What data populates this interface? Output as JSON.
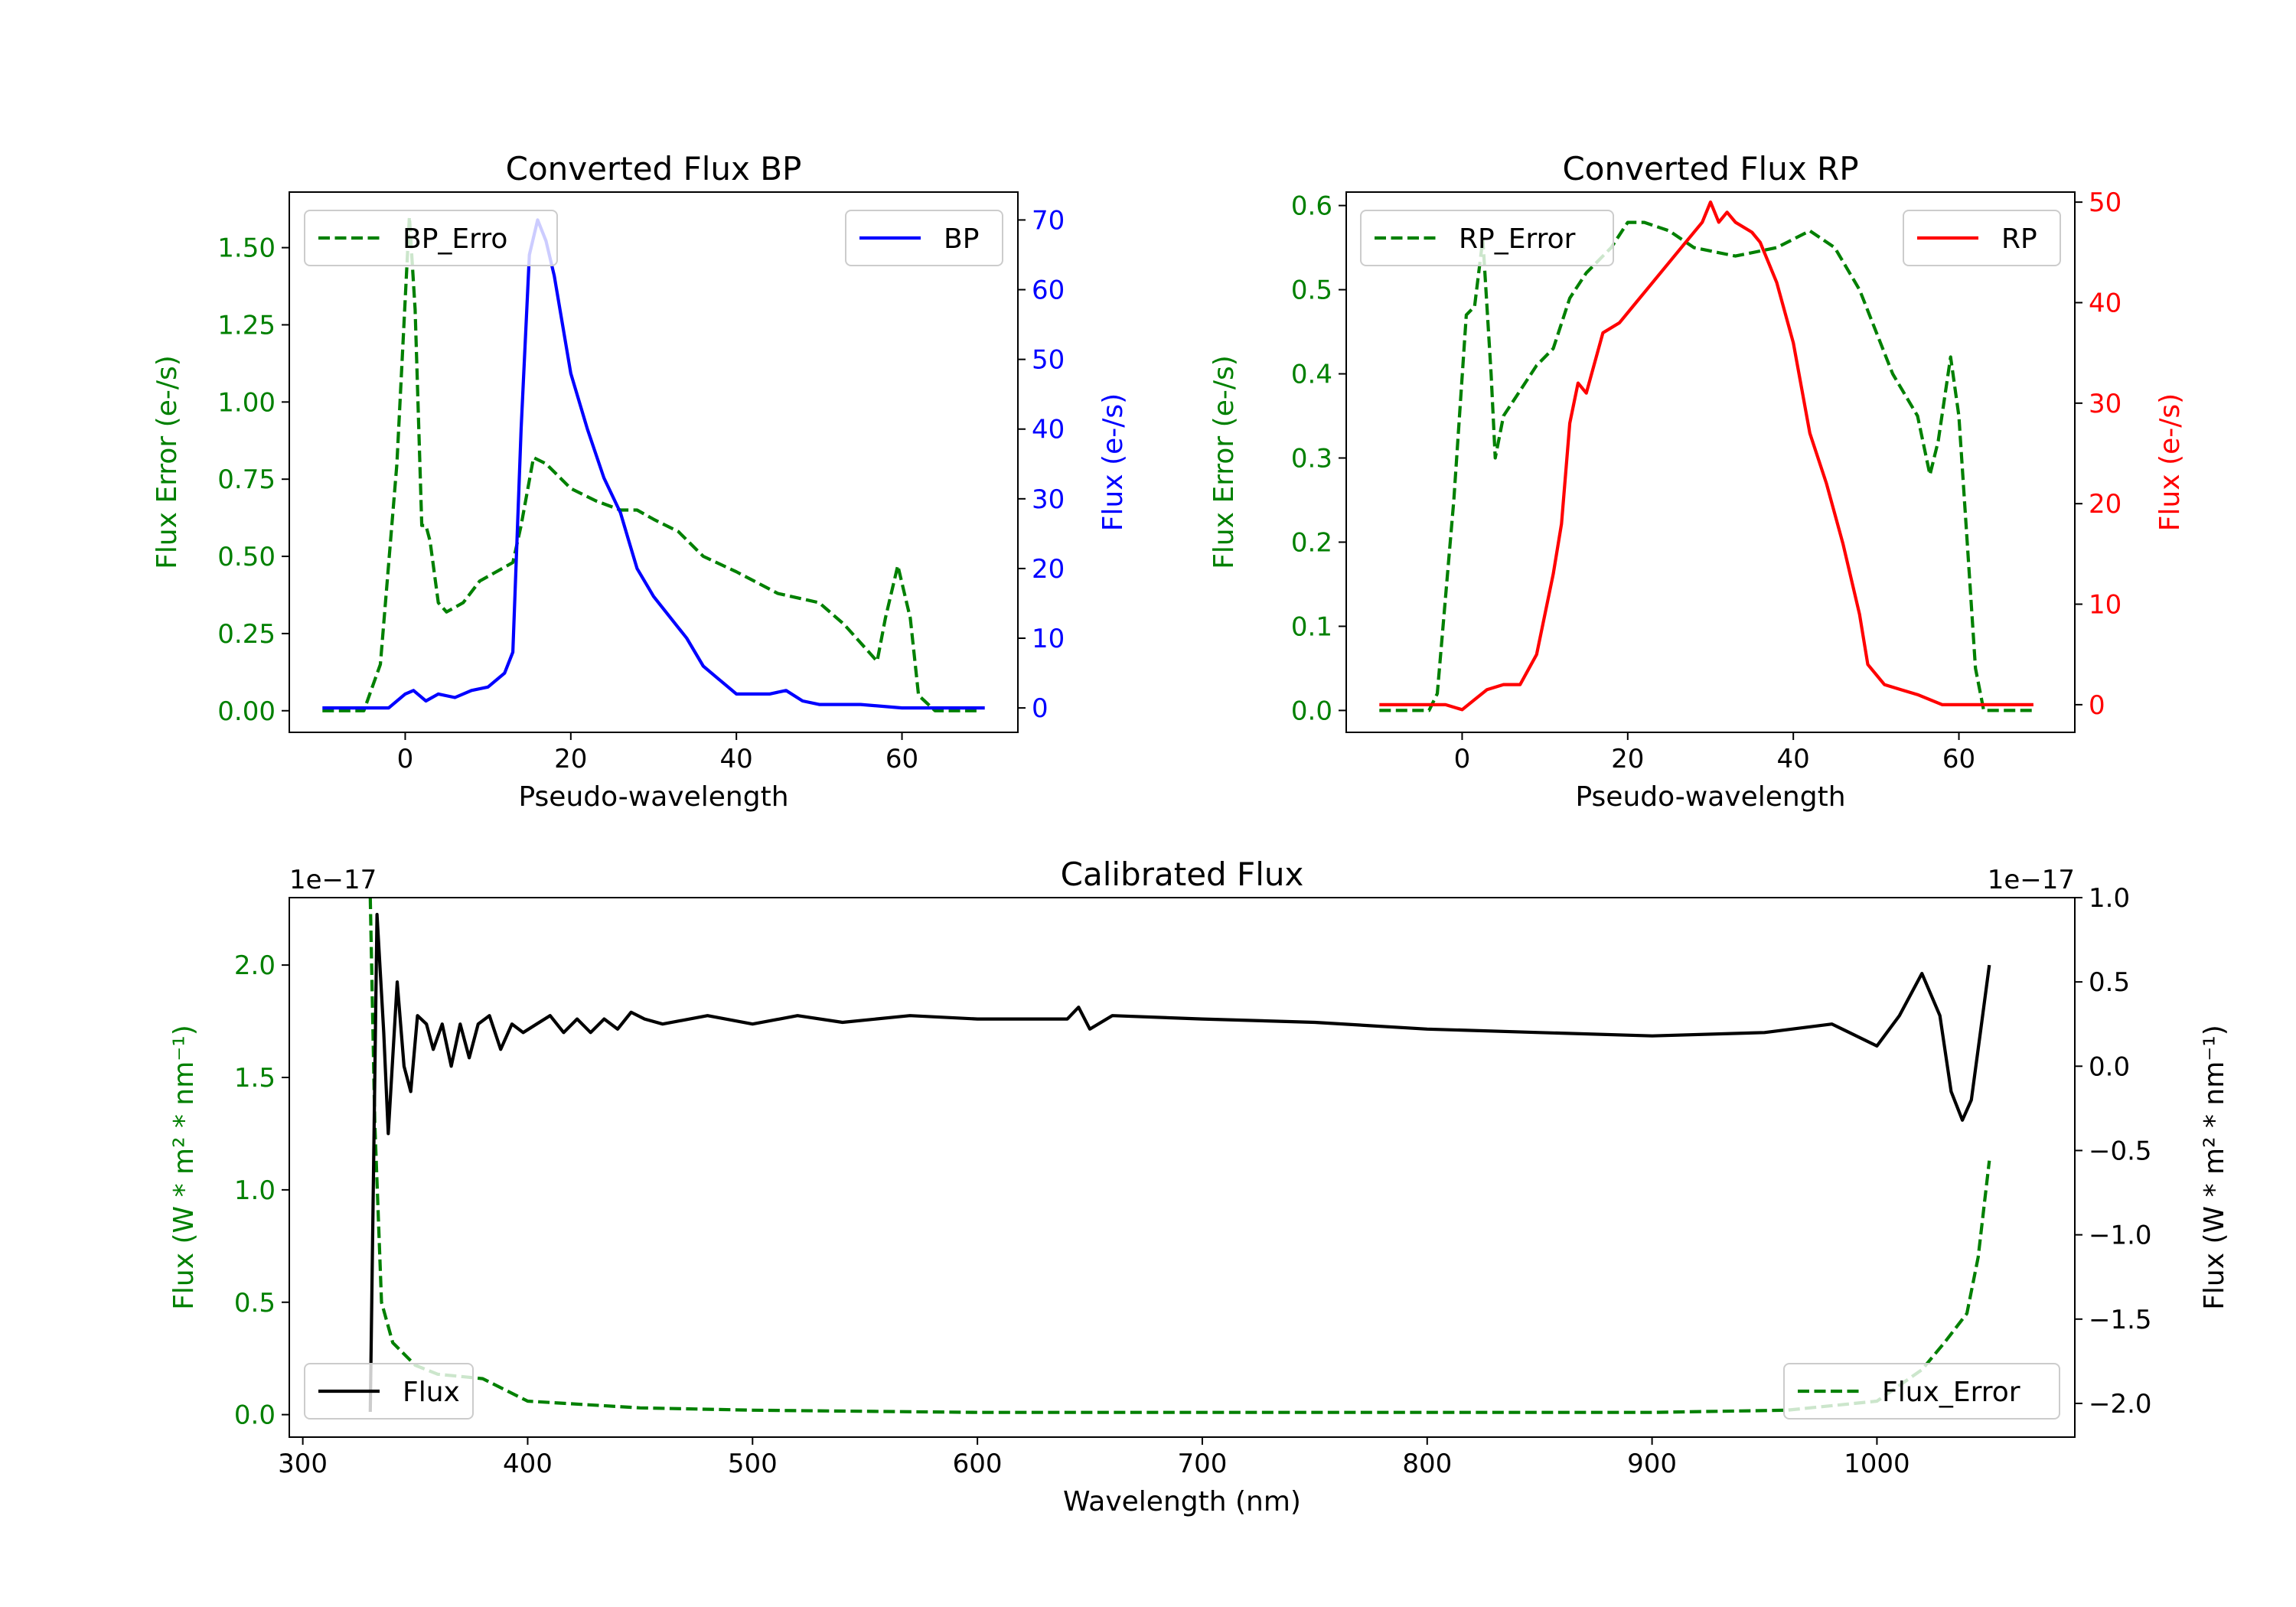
{
  "colors": {
    "green": "#008000",
    "blue": "#0000ff",
    "red": "#ff0000",
    "black": "#000000",
    "axis": "#000000"
  },
  "chart_data": [
    {
      "id": "bp",
      "type": "line",
      "title": "Converted Flux BP",
      "xlabel": "Pseudo-wavelength",
      "xlim": [
        -14,
        74
      ],
      "xticks": [
        0,
        20,
        40,
        60
      ],
      "left_axis": {
        "label": "Flux Error (e-/s)",
        "color": "#008000",
        "ylim": [
          -0.07,
          1.68
        ],
        "ticks": [
          0.0,
          0.25,
          0.5,
          0.75,
          1.0,
          1.25,
          1.5
        ],
        "tick_labels": [
          "0.00",
          "0.25",
          "0.50",
          "0.75",
          "1.00",
          "1.25",
          "1.50"
        ]
      },
      "right_axis": {
        "label": "Flux (e-/s)",
        "color": "#0000ff",
        "ylim": [
          -3.5,
          74
        ],
        "ticks": [
          0,
          10,
          20,
          30,
          40,
          50,
          60,
          70
        ],
        "tick_labels": [
          "0",
          "10",
          "20",
          "30",
          "40",
          "50",
          "60",
          "70"
        ]
      },
      "series": [
        {
          "name": "BP_Error",
          "axis": "left",
          "color": "#008000",
          "dashed": true,
          "legend_label": "BP_Erro",
          "legend_position": "upper-left",
          "points": [
            [
              -10,
              0.0
            ],
            [
              -5,
              0.0
            ],
            [
              -3,
              0.15
            ],
            [
              -1,
              0.8
            ],
            [
              0.5,
              1.6
            ],
            [
              1.2,
              1.3
            ],
            [
              2,
              0.6
            ],
            [
              2.5,
              0.6
            ],
            [
              3,
              0.55
            ],
            [
              4,
              0.35
            ],
            [
              5,
              0.32
            ],
            [
              7,
              0.35
            ],
            [
              9,
              0.42
            ],
            [
              11,
              0.45
            ],
            [
              13,
              0.48
            ],
            [
              14,
              0.6
            ],
            [
              15.5,
              0.82
            ],
            [
              17,
              0.8
            ],
            [
              20,
              0.72
            ],
            [
              23,
              0.68
            ],
            [
              26,
              0.65
            ],
            [
              28,
              0.65
            ],
            [
              30,
              0.62
            ],
            [
              33,
              0.58
            ],
            [
              36,
              0.5
            ],
            [
              40,
              0.45
            ],
            [
              45,
              0.38
            ],
            [
              50,
              0.35
            ],
            [
              53,
              0.28
            ],
            [
              57,
              0.16
            ],
            [
              58,
              0.3
            ],
            [
              59.5,
              0.47
            ],
            [
              61,
              0.3
            ],
            [
              62,
              0.05
            ],
            [
              64,
              0.0
            ],
            [
              69,
              0.0
            ]
          ]
        },
        {
          "name": "BP",
          "axis": "right",
          "color": "#0000ff",
          "dashed": false,
          "legend_label": "BP",
          "legend_position": "upper-right",
          "points": [
            [
              -10,
              0
            ],
            [
              -2,
              0
            ],
            [
              0,
              2
            ],
            [
              1,
              2.5
            ],
            [
              2.5,
              1
            ],
            [
              4,
              2
            ],
            [
              6,
              1.5
            ],
            [
              8,
              2.5
            ],
            [
              10,
              3
            ],
            [
              12,
              5
            ],
            [
              13,
              8
            ],
            [
              14,
              40
            ],
            [
              15,
              65
            ],
            [
              16,
              70
            ],
            [
              17,
              67
            ],
            [
              18,
              62
            ],
            [
              20,
              48
            ],
            [
              22,
              40
            ],
            [
              24,
              33
            ],
            [
              26,
              28
            ],
            [
              27,
              24
            ],
            [
              28,
              20
            ],
            [
              30,
              16
            ],
            [
              32,
              13
            ],
            [
              34,
              10
            ],
            [
              36,
              6
            ],
            [
              38,
              4
            ],
            [
              40,
              2
            ],
            [
              44,
              2
            ],
            [
              46,
              2.5
            ],
            [
              48,
              1
            ],
            [
              50,
              0.5
            ],
            [
              55,
              0.5
            ],
            [
              60,
              0
            ],
            [
              70,
              0
            ]
          ]
        }
      ]
    },
    {
      "id": "rp",
      "type": "line",
      "title": "Converted Flux RP",
      "xlabel": "Pseudo-wavelength",
      "xlim": [
        -14,
        74
      ],
      "xticks": [
        0,
        20,
        40,
        60
      ],
      "left_axis": {
        "label": "Flux Error (e-/s)",
        "color": "#008000",
        "ylim": [
          -0.026,
          0.616
        ],
        "ticks": [
          0.0,
          0.1,
          0.2,
          0.3,
          0.4,
          0.5,
          0.6
        ],
        "tick_labels": [
          "0.0",
          "0.1",
          "0.2",
          "0.3",
          "0.4",
          "0.5",
          "0.6"
        ]
      },
      "right_axis": {
        "label": "Flux (e-/s)",
        "color": "#ff0000",
        "ylim": [
          -2.75,
          51
        ],
        "ticks": [
          0,
          10,
          20,
          30,
          40,
          50
        ],
        "tick_labels": [
          "0",
          "10",
          "20",
          "30",
          "40",
          "50"
        ]
      },
      "series": [
        {
          "name": "RP_Error",
          "axis": "left",
          "color": "#008000",
          "dashed": true,
          "legend_label": "RP_Error",
          "legend_position": "upper-left",
          "points": [
            [
              -10,
              0.0
            ],
            [
              -4,
              0.0
            ],
            [
              -3,
              0.02
            ],
            [
              -1,
              0.25
            ],
            [
              0.5,
              0.47
            ],
            [
              1.5,
              0.48
            ],
            [
              2.5,
              0.56
            ],
            [
              3.5,
              0.4
            ],
            [
              4,
              0.3
            ],
            [
              5,
              0.35
            ],
            [
              7,
              0.38
            ],
            [
              9,
              0.41
            ],
            [
              11,
              0.43
            ],
            [
              13,
              0.49
            ],
            [
              15,
              0.52
            ],
            [
              18,
              0.55
            ],
            [
              20,
              0.58
            ],
            [
              22,
              0.58
            ],
            [
              25,
              0.57
            ],
            [
              28,
              0.55
            ],
            [
              33,
              0.54
            ],
            [
              38,
              0.55
            ],
            [
              40,
              0.56
            ],
            [
              42,
              0.57
            ],
            [
              45,
              0.55
            ],
            [
              48,
              0.5
            ],
            [
              52,
              0.4
            ],
            [
              55,
              0.35
            ],
            [
              56.5,
              0.28
            ],
            [
              57.5,
              0.32
            ],
            [
              59,
              0.42
            ],
            [
              60,
              0.35
            ],
            [
              61,
              0.2
            ],
            [
              62,
              0.05
            ],
            [
              63,
              0.0
            ],
            [
              69,
              0.0
            ]
          ]
        },
        {
          "name": "RP",
          "axis": "right",
          "color": "#ff0000",
          "dashed": false,
          "legend_label": "RP",
          "legend_position": "upper-right",
          "points": [
            [
              -10,
              0
            ],
            [
              -4,
              0
            ],
            [
              -2,
              0
            ],
            [
              0,
              -0.5
            ],
            [
              1.5,
              0.5
            ],
            [
              3,
              1.5
            ],
            [
              5,
              2
            ],
            [
              7,
              2
            ],
            [
              9,
              5
            ],
            [
              11,
              13
            ],
            [
              12,
              18
            ],
            [
              13,
              28
            ],
            [
              14,
              32
            ],
            [
              15,
              31
            ],
            [
              17,
              37
            ],
            [
              19,
              38
            ],
            [
              21,
              40
            ],
            [
              23,
              42
            ],
            [
              25,
              44
            ],
            [
              27,
              46
            ],
            [
              29,
              48
            ],
            [
              30,
              50
            ],
            [
              31,
              48
            ],
            [
              32,
              49
            ],
            [
              33,
              48
            ],
            [
              35,
              47
            ],
            [
              36,
              46
            ],
            [
              38,
              42
            ],
            [
              40,
              36
            ],
            [
              42,
              27
            ],
            [
              44,
              22
            ],
            [
              46,
              16
            ],
            [
              48,
              9
            ],
            [
              49,
              4
            ],
            [
              51,
              2
            ],
            [
              53,
              1.5
            ],
            [
              55,
              1
            ],
            [
              58,
              0
            ],
            [
              69,
              0
            ]
          ]
        }
      ]
    },
    {
      "id": "calibrated",
      "type": "line",
      "title": "Calibrated Flux",
      "xlabel": "Wavelength (nm)",
      "xlim": [
        294,
        1088
      ],
      "xticks": [
        300,
        400,
        500,
        600,
        700,
        800,
        900,
        1000
      ],
      "left_axis": {
        "label": "Flux (W * m² * nm⁻¹)",
        "color": "#008000",
        "ylim": [
          -0.1,
          2.3
        ],
        "offset_text": "1e−17",
        "ticks": [
          0.0,
          0.5,
          1.0,
          1.5,
          2.0
        ],
        "tick_labels": [
          "0.0",
          "0.5",
          "1.0",
          "1.5",
          "2.0"
        ]
      },
      "right_axis": {
        "label": "Flux (W * m² * nm⁻¹)",
        "color": "#000000",
        "ylim": [
          -2.2,
          1.0
        ],
        "offset_text": "1e−17",
        "ticks": [
          -2.0,
          -1.5,
          -1.0,
          -0.5,
          0.0,
          0.5,
          1.0
        ],
        "tick_labels": [
          "−2.0",
          "−1.5",
          "−1.0",
          "−0.5",
          "0.0",
          "0.5",
          "1.0"
        ]
      },
      "series": [
        {
          "name": "Flux_Error",
          "axis": "left",
          "color": "#008000",
          "dashed": true,
          "legend_label": "Flux_Error",
          "legend_position": "lower-right",
          "points": [
            [
              330,
              2.3
            ],
            [
              332,
              1.3
            ],
            [
              335,
              0.5
            ],
            [
              340,
              0.32
            ],
            [
              350,
              0.22
            ],
            [
              360,
              0.18
            ],
            [
              380,
              0.16
            ],
            [
              400,
              0.06
            ],
            [
              450,
              0.03
            ],
            [
              500,
              0.02
            ],
            [
              600,
              0.01
            ],
            [
              640,
              0.01
            ],
            [
              700,
              0.01
            ],
            [
              800,
              0.01
            ],
            [
              900,
              0.01
            ],
            [
              960,
              0.02
            ],
            [
              1000,
              0.06
            ],
            [
              1020,
              0.2
            ],
            [
              1030,
              0.32
            ],
            [
              1040,
              0.45
            ],
            [
              1045,
              0.7
            ],
            [
              1050,
              1.13
            ]
          ]
        },
        {
          "name": "Flux",
          "axis": "right",
          "color": "#000000",
          "dashed": false,
          "legend_label": "Flux",
          "legend_position": "lower-left",
          "points": [
            [
              330,
              -2.05
            ],
            [
              333,
              0.9
            ],
            [
              336,
              0.2
            ],
            [
              338,
              -0.4
            ],
            [
              342,
              0.5
            ],
            [
              345,
              0.0
            ],
            [
              348,
              -0.15
            ],
            [
              351,
              0.3
            ],
            [
              355,
              0.25
            ],
            [
              358,
              0.1
            ],
            [
              362,
              0.25
            ],
            [
              366,
              0.0
            ],
            [
              370,
              0.25
            ],
            [
              374,
              0.05
            ],
            [
              378,
              0.25
            ],
            [
              383,
              0.3
            ],
            [
              388,
              0.1
            ],
            [
              393,
              0.25
            ],
            [
              398,
              0.2
            ],
            [
              404,
              0.25
            ],
            [
              410,
              0.3
            ],
            [
              416,
              0.2
            ],
            [
              422,
              0.28
            ],
            [
              428,
              0.2
            ],
            [
              434,
              0.28
            ],
            [
              440,
              0.22
            ],
            [
              446,
              0.32
            ],
            [
              452,
              0.28
            ],
            [
              460,
              0.25
            ],
            [
              480,
              0.3
            ],
            [
              500,
              0.25
            ],
            [
              520,
              0.3
            ],
            [
              540,
              0.26
            ],
            [
              570,
              0.3
            ],
            [
              600,
              0.28
            ],
            [
              640,
              0.28
            ],
            [
              645,
              0.35
            ],
            [
              650,
              0.22
            ],
            [
              660,
              0.3
            ],
            [
              700,
              0.28
            ],
            [
              750,
              0.26
            ],
            [
              800,
              0.22
            ],
            [
              850,
              0.2
            ],
            [
              900,
              0.18
            ],
            [
              950,
              0.2
            ],
            [
              980,
              0.25
            ],
            [
              1000,
              0.12
            ],
            [
              1010,
              0.3
            ],
            [
              1020,
              0.55
            ],
            [
              1028,
              0.3
            ],
            [
              1033,
              -0.15
            ],
            [
              1038,
              -0.32
            ],
            [
              1042,
              -0.2
            ],
            [
              1046,
              0.2
            ],
            [
              1050,
              0.6
            ]
          ]
        }
      ]
    }
  ]
}
